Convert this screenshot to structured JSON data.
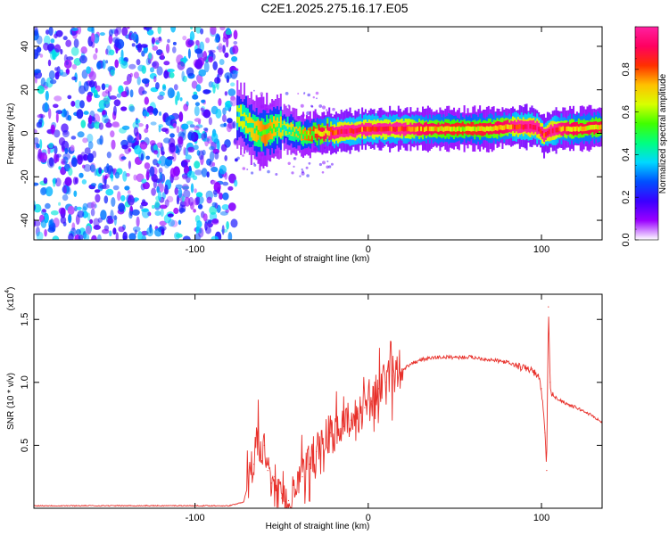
{
  "title": "C2E1.2025.275.16.17.E05",
  "chart_data": [
    {
      "type": "heatmap",
      "title": "C2E1.2025.275.16.17.E05",
      "xlabel": "Height of straight line (km)",
      "ylabel": "Frequency (Hz)",
      "xlim": [
        -193,
        135
      ],
      "ylim": [
        -49,
        49
      ],
      "xticks": [
        {
          "v": -100,
          "label": "-100"
        },
        {
          "v": 0,
          "label": "0"
        },
        {
          "v": 100,
          "label": "100"
        }
      ],
      "yticks": [
        {
          "v": -40,
          "label": "-40"
        },
        {
          "v": -20,
          "label": "-20"
        },
        {
          "v": 0,
          "label": "0"
        },
        {
          "v": 20,
          "label": "20"
        },
        {
          "v": 40,
          "label": "40"
        }
      ],
      "noise_region_x": [
        -193,
        -76
      ],
      "ridge": {
        "x": [
          -76,
          -72,
          -68,
          -64,
          -60,
          -56,
          -52,
          -48,
          -44,
          -40,
          -36,
          -32,
          -28,
          -24,
          -20,
          -16,
          -12,
          -8,
          -4,
          0,
          10,
          20,
          30,
          40,
          50,
          60,
          70,
          80,
          85,
          90,
          95,
          98,
          101,
          105,
          110,
          120,
          135
        ],
        "freq": [
          8,
          6,
          3,
          1,
          0,
          2,
          3,
          2,
          1,
          0,
          -1,
          0,
          0,
          1,
          0,
          1,
          1,
          1,
          2,
          2,
          2,
          2,
          2,
          2,
          2,
          2,
          2,
          3,
          3,
          3,
          3,
          2,
          -1,
          1,
          2,
          2,
          3
        ],
        "amplitude": [
          0.35,
          0.4,
          0.45,
          0.5,
          0.55,
          0.5,
          0.45,
          0.4,
          0.45,
          0.5,
          0.55,
          0.6,
          0.7,
          0.75,
          0.85,
          0.9,
          0.9,
          0.9,
          0.85,
          0.9,
          0.85,
          0.85,
          0.75,
          0.7,
          0.65,
          0.65,
          0.7,
          0.75,
          0.9,
          0.95,
          0.95,
          0.9,
          0.85,
          0.95,
          0.8,
          0.7,
          0.7
        ]
      }
    },
    {
      "type": "line",
      "xlabel": "Height of straight line (km)",
      "ylabel": "SNR (10 * v/v)",
      "scale_label": "(x10",
      "scale_exp": "4",
      "xlim": [
        -193,
        135
      ],
      "ylim": [
        0,
        1.7
      ],
      "xticks": [
        {
          "v": -100,
          "label": "-100"
        },
        {
          "v": 0,
          "label": "0"
        },
        {
          "v": 100,
          "label": "100"
        }
      ],
      "yticks": [
        {
          "v": 0.5,
          "label": "0.5"
        },
        {
          "v": 1.0,
          "label": "1.0"
        },
        {
          "v": 1.5,
          "label": "1.5"
        }
      ],
      "series": [
        {
          "name": "SNR",
          "color": "#e8302a",
          "x": [
            -193,
            -150,
            -100,
            -80,
            -72,
            -66,
            -64,
            -62,
            -60,
            -58,
            -56,
            -54,
            -52,
            -50,
            -48,
            -46,
            -42,
            -38,
            -34,
            -30,
            -26,
            -22,
            -18,
            -14,
            -10,
            -6,
            -2,
            2,
            6,
            10,
            14,
            18,
            22,
            26,
            30,
            40,
            50,
            60,
            70,
            80,
            88,
            94,
            98,
            100,
            102,
            103,
            104,
            105,
            106,
            108,
            112,
            116,
            120,
            126,
            130,
            135
          ],
          "values": [
            0.02,
            0.02,
            0.02,
            0.02,
            0.05,
            0.35,
            0.6,
            0.45,
            0.5,
            0.3,
            0.2,
            0.25,
            0.12,
            0.08,
            0.05,
            0.06,
            0.15,
            0.25,
            0.35,
            0.45,
            0.55,
            0.6,
            0.6,
            0.65,
            0.7,
            0.75,
            0.8,
            0.85,
            0.95,
            1.0,
            1.05,
            1.1,
            1.12,
            1.15,
            1.18,
            1.2,
            1.2,
            1.2,
            1.18,
            1.16,
            1.12,
            1.1,
            1.05,
            0.95,
            0.6,
            0.3,
            1.6,
            1.0,
            0.9,
            0.88,
            0.85,
            0.82,
            0.8,
            0.76,
            0.73,
            0.68
          ]
        }
      ]
    }
  ],
  "colorbar": {
    "label": "Normalized spectral amplitude",
    "range": [
      0,
      1
    ],
    "ticks": [
      {
        "v": 0.0,
        "label": "0.0"
      },
      {
        "v": 0.2,
        "label": "0.2"
      },
      {
        "v": 0.4,
        "label": "0.4"
      },
      {
        "v": 0.6,
        "label": "0.6"
      },
      {
        "v": 0.8,
        "label": "0.8"
      }
    ],
    "stops": [
      "#ffffff",
      "#9a00ff",
      "#3a00ff",
      "#0050ff",
      "#00d8ff",
      "#00ff80",
      "#40ff00",
      "#d8ff00",
      "#ffc000",
      "#ff3000",
      "#ff0060",
      "#ff20a0"
    ]
  }
}
